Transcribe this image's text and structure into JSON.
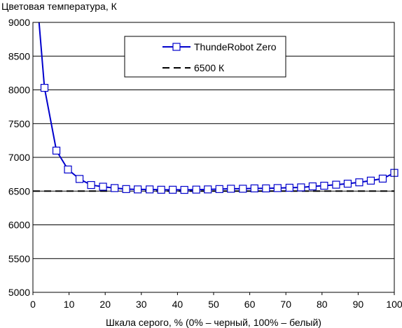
{
  "chart_data": {
    "type": "line",
    "ylabel": "Цветовая температура, К",
    "xlabel": "Шкала серого, % (0% – черный, 100% – белый)",
    "xlim": [
      0,
      100
    ],
    "ylim": [
      5000,
      9000
    ],
    "x_ticks": [
      "0",
      "10",
      "20",
      "30",
      "40",
      "50",
      "60",
      "70",
      "80",
      "90",
      "100"
    ],
    "y_ticks": [
      "5000",
      "5500",
      "6000",
      "6500",
      "7000",
      "7500",
      "8000",
      "8500",
      "9000"
    ],
    "grid": "horizontal",
    "legend_position": "top-center",
    "series": [
      {
        "name": "ThundeRobot Zero",
        "color": "#0000cc",
        "marker": "open-square",
        "x": [
          3.2,
          6.5,
          9.7,
          12.9,
          16.1,
          19.4,
          22.6,
          25.8,
          29.0,
          32.3,
          35.5,
          38.7,
          41.9,
          45.2,
          48.4,
          51.6,
          54.8,
          58.1,
          61.3,
          64.5,
          67.7,
          71.0,
          74.2,
          77.4,
          80.6,
          83.9,
          87.1,
          90.3,
          93.5,
          96.8,
          100
        ],
        "y": [
          8030,
          7100,
          6820,
          6680,
          6590,
          6565,
          6545,
          6530,
          6525,
          6525,
          6520,
          6520,
          6518,
          6522,
          6525,
          6530,
          6535,
          6535,
          6540,
          6540,
          6545,
          6550,
          6555,
          6570,
          6580,
          6595,
          6610,
          6630,
          6655,
          6685,
          6770
        ],
        "extra_line_start": {
          "x": 1.7,
          "y": 9000
        }
      },
      {
        "name": "6500 К",
        "color": "#000000",
        "style": "dashed",
        "x": [
          0,
          100
        ],
        "y": [
          6500,
          6500
        ]
      }
    ]
  }
}
